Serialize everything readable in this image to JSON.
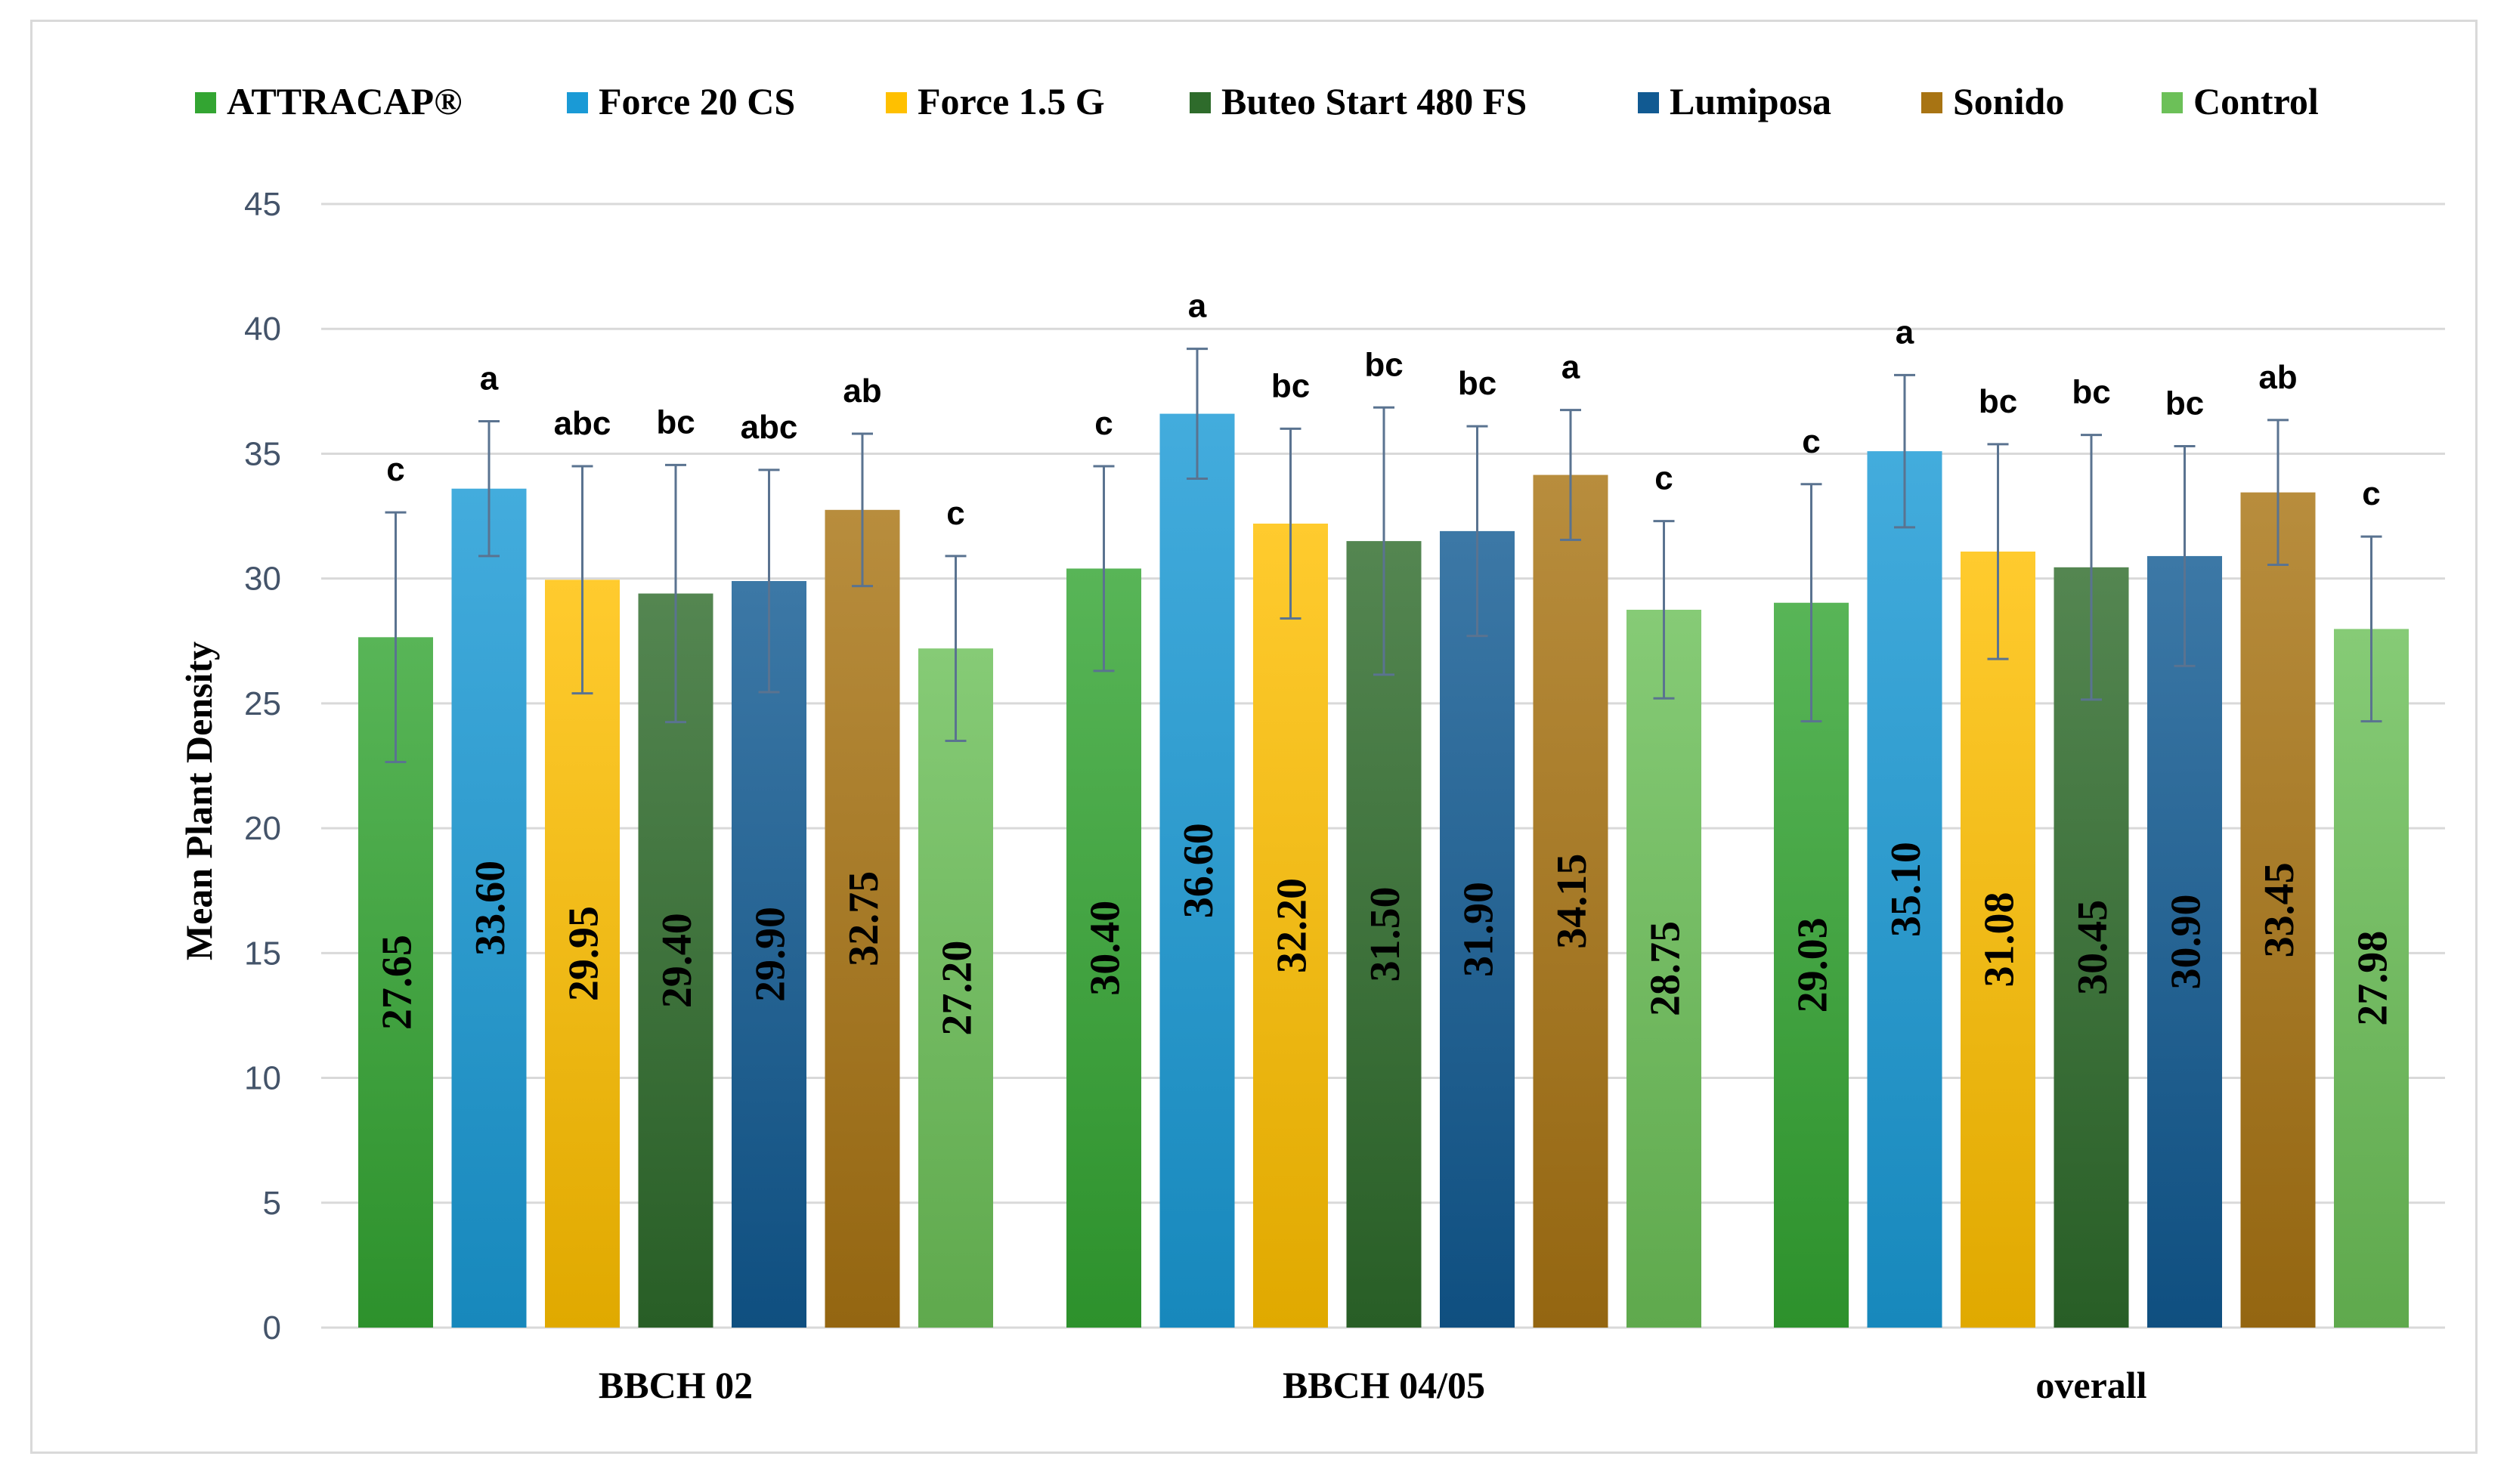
{
  "chart_data": {
    "type": "bar",
    "title": "",
    "xlabel": "",
    "ylabel": "Mean Plant Density",
    "ylim": [
      0,
      45
    ],
    "yticks": [
      0,
      5,
      10,
      15,
      20,
      25,
      30,
      35,
      40,
      45
    ],
    "grid": true,
    "legend_position": "top",
    "categories": [
      "BBCH 02",
      "BBCH 04/05",
      "overall"
    ],
    "series": [
      {
        "name": "ATTRACAP®",
        "color": "#33a532",
        "values": [
          27.65,
          30.4,
          29.03
        ],
        "value_labels": [
          "27.65",
          "30.40",
          "29.03"
        ],
        "error": [
          5.0,
          4.1,
          4.75
        ],
        "significance": [
          "c",
          "c",
          "c"
        ]
      },
      {
        "name": "Force 20 CS",
        "color": "#1a9ad6",
        "values": [
          33.6,
          36.6,
          35.1
        ],
        "value_labels": [
          "33.60",
          "36.60",
          "35.10"
        ],
        "error": [
          2.7,
          2.6,
          3.05
        ],
        "significance": [
          "a",
          "a",
          "a"
        ]
      },
      {
        "name": "Force 1.5 G",
        "color": "#ffc000",
        "values": [
          29.95,
          32.2,
          31.08
        ],
        "value_labels": [
          "29.95",
          "32.20",
          "31.08"
        ],
        "error": [
          4.55,
          3.8,
          4.3
        ],
        "significance": [
          "abc",
          "bc",
          "bc"
        ]
      },
      {
        "name": "Buteo Start 480 FS",
        "color": "#2e6b2b",
        "values": [
          29.4,
          31.5,
          30.45
        ],
        "value_labels": [
          "29.40",
          "31.50",
          "30.45"
        ],
        "error": [
          5.15,
          5.35,
          5.3
        ],
        "significance": [
          "bc",
          "bc",
          "bc"
        ]
      },
      {
        "name": "Lumiposa",
        "color": "#115a92",
        "values": [
          29.9,
          31.9,
          30.9
        ],
        "value_labels": [
          "29.90",
          "31.90",
          "30.90"
        ],
        "error": [
          4.45,
          4.2,
          4.4
        ],
        "significance": [
          "abc",
          "bc",
          "bc"
        ]
      },
      {
        "name": "Sonido",
        "color": "#a87413",
        "values": [
          32.75,
          34.15,
          33.45
        ],
        "value_labels": [
          "32.75",
          "34.15",
          "33.45"
        ],
        "error": [
          3.05,
          2.6,
          2.9
        ],
        "significance": [
          "ab",
          "a",
          "ab"
        ]
      },
      {
        "name": "Control",
        "color": "#6cc058",
        "values": [
          27.2,
          28.75,
          27.98
        ],
        "value_labels": [
          "27.20",
          "28.75",
          "27.98"
        ],
        "error": [
          3.7,
          3.55,
          3.7
        ],
        "significance": [
          "c",
          "c",
          "c"
        ]
      }
    ]
  }
}
